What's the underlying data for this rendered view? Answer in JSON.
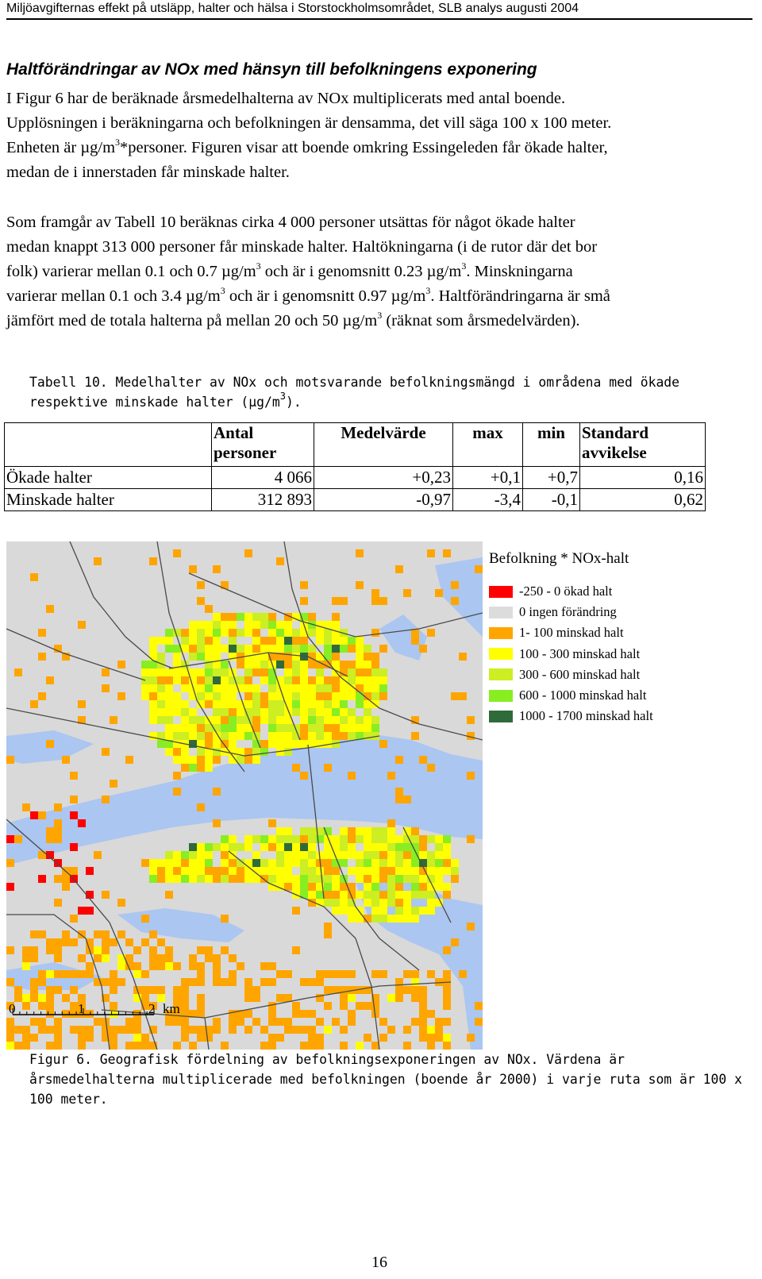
{
  "header": {
    "running_title": "Miljöavgifternas effekt på utsläpp, halter och hälsa i Storstockholmsområdet, SLB analys augusti 2004"
  },
  "section": {
    "heading": "Haltförändringar av NOx med hänsyn till befolkningens exponering"
  },
  "para1": {
    "line1": "I Figur 6 har de beräknade årsmedelhalterna av NOx multiplicerats med antal boende.",
    "line2": "Upplösningen i beräkningarna och befolkningen är densamma, det vill säga 100 x 100 meter.",
    "line3a": "Enheten är µg/m",
    "line3sup": "3",
    "line3b": "*personer. Figuren visar att boende omkring Essingeleden får ökade halter,",
    "line4": "medan de i innerstaden får minskade halter."
  },
  "para2": {
    "line1": "Som framgår av Tabell 10 beräknas cirka 4 000 personer utsättas för något ökade halter",
    "line2": "medan knappt 313 000 personer får minskade halter. Haltökningarna (i de rutor där det bor",
    "line3a": "folk) varierar mellan 0.1 och 0.7 µg/m",
    "line3sup1": "3",
    "line3b": " och är i genomsnitt 0.23 µg/m",
    "line3sup2": "3",
    "line3c": ". Minskningarna",
    "line4a": "varierar mellan 0.1 och 3.4 µg/m",
    "line4sup1": "3",
    "line4b": " och är i genomsnitt 0.97 µg/m",
    "line4sup2": "3",
    "line4c": ". Haltförändringarna är små",
    "line5a": "jämfört med de totala halterna på mellan 20 och 50 µg/m",
    "line5sup": "3",
    "line5b": " (räknat som årsmedelvärden)."
  },
  "table_caption": {
    "line1": "Tabell 10. Medelhalter av NOx och motsvarande befolkningsmängd i områdena med ökade",
    "line2a": "respektive minskade halter (µg/m",
    "line2sup": "3",
    "line2b": ")."
  },
  "table": {
    "headers": [
      "",
      "Antal personer",
      "Medelvärde",
      "max",
      "min",
      "Standard avvikelse"
    ],
    "rows": [
      [
        "Ökade halter",
        "4 066",
        "+0,23",
        "+0,1",
        "+0,7",
        "0,16"
      ],
      [
        "Minskade halter",
        "312 893",
        "-0,97",
        "-3,4",
        "-0,1",
        "0,62"
      ]
    ]
  },
  "map": {
    "scale_labels": [
      "0",
      "1",
      "2",
      "km"
    ],
    "colors": {
      "background": "#d9d9d9",
      "water": "#abc6f0",
      "roads": "#4a4a4a"
    }
  },
  "legend": {
    "title": "Befolkning * NOx-halt",
    "items": [
      {
        "label": "-250 - 0 ökad halt",
        "color": "#ff0000"
      },
      {
        "label": "0  ingen förändring",
        "color": "#dcdcdc"
      },
      {
        "label": "1- 100 minskad halt",
        "color": "#ffa500"
      },
      {
        "label": "100 - 300 minskad halt",
        "color": "#ffff00"
      },
      {
        "label": "300 - 600 minskad halt",
        "color": "#ccee22"
      },
      {
        "label": "600 - 1000 minskad halt",
        "color": "#88ee22"
      },
      {
        "label": "1000 - 1700 minskad halt",
        "color": "#2f6b3a"
      }
    ]
  },
  "figure_caption": {
    "line1": "Figur 6. Geografisk fördelning av befolkningsexponeringen av NOx. Värdena är",
    "line2": "årsmedelhalterna multiplicerade med befolkningen (boende år 2000) i varje ruta som är 100 x",
    "line3": "100 meter."
  },
  "page_number": "16"
}
